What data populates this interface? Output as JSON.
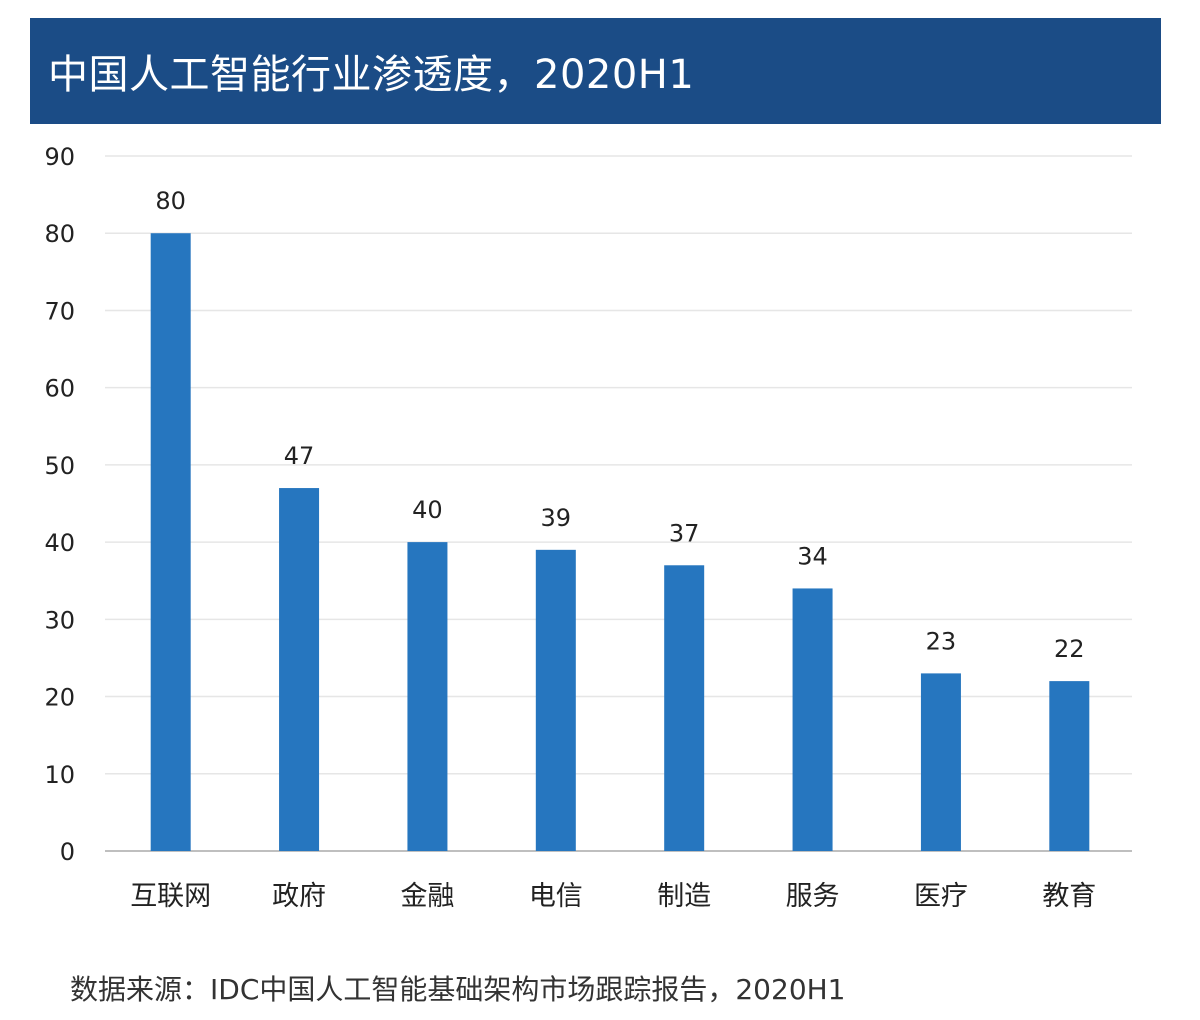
{
  "colors": {
    "title_bg": "#1b4c86",
    "bar": "#2676bf",
    "grid": "#e6e6e6",
    "axis": "#bfbfbf"
  },
  "title": "中国人工智能行业渗透度，2020H1",
  "source": "数据来源：IDC中国人工智能基础架构市场跟踪报告，2020H1",
  "chart_data": {
    "type": "bar",
    "title": "中国人工智能行业渗透度，2020H1",
    "categories": [
      "互联网",
      "政府",
      "金融",
      "电信",
      "制造",
      "服务",
      "医疗",
      "教育"
    ],
    "values": [
      80,
      47,
      40,
      39,
      37,
      34,
      23,
      22
    ],
    "data_labels": [
      "80",
      "47",
      "40",
      "39",
      "37",
      "34",
      "23",
      "22"
    ],
    "ylim": [
      0,
      90
    ],
    "yticks": [
      0,
      10,
      20,
      30,
      40,
      50,
      60,
      70,
      80,
      90
    ],
    "ytick_labels": [
      "0",
      "10",
      "20",
      "30",
      "40",
      "50",
      "60",
      "70",
      "80",
      "90"
    ],
    "xlabel": "",
    "ylabel": "",
    "grid": true,
    "legend": "none"
  }
}
